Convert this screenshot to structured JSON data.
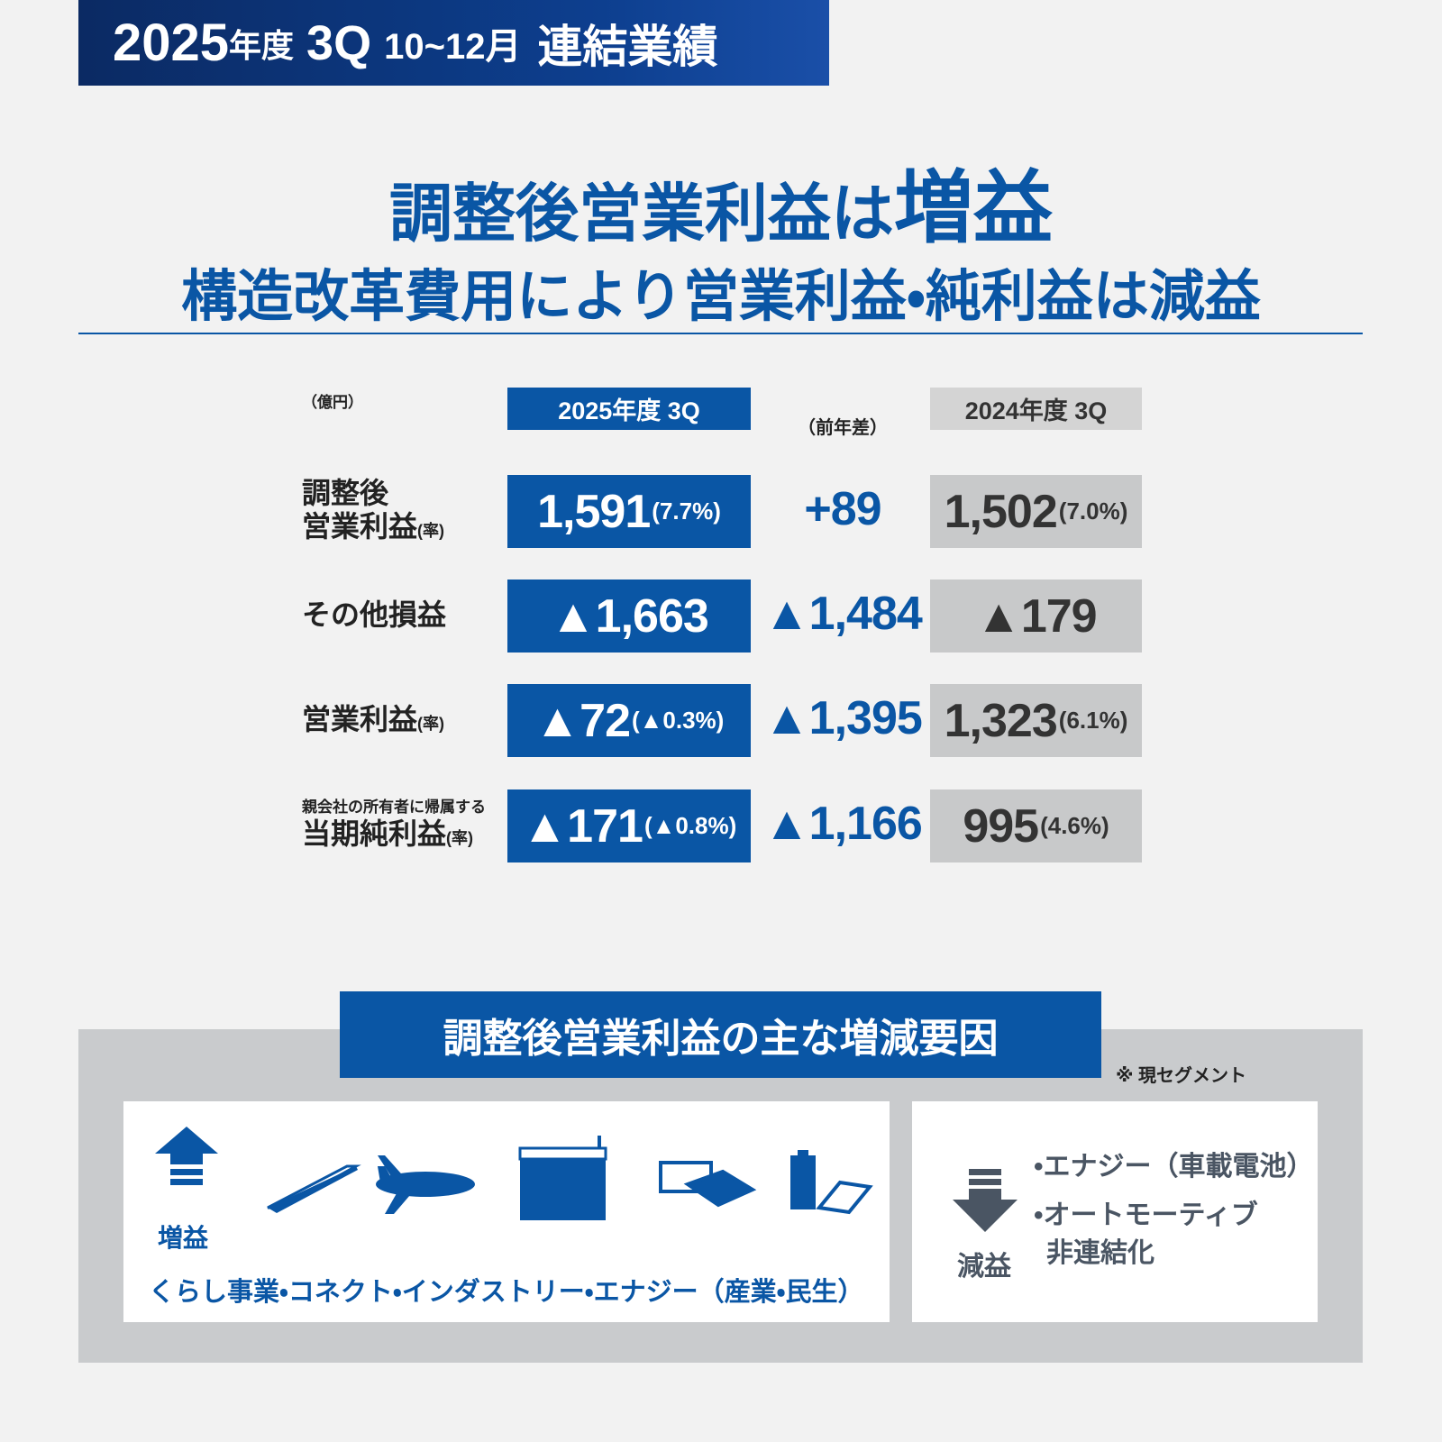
{
  "header": {
    "year": "2025",
    "year_suffix": "年度",
    "quarter": "3Q",
    "period": "10~12月",
    "label": "連結業績"
  },
  "headline": {
    "line1_a": "調整後営業利益は",
    "line1_b": "増益",
    "line2": "構造改革費用により営業利益・純利益は減益"
  },
  "table": {
    "unit": "（億円）",
    "columns": [
      "2025年度 3Q",
      "（前年差）",
      "2024年度 3Q"
    ],
    "rows": [
      {
        "label": [
          "調整後",
          "営業利益"
        ],
        "rate_mark": "(率)",
        "current": "1,591",
        "current_rate": "(7.7%)",
        "diff": "+89",
        "previous": "1,502",
        "previous_rate": "(7.0%)"
      },
      {
        "label": [
          "その他損益"
        ],
        "current": "▲1,663",
        "diff": "▲1,484",
        "previous": "▲179"
      },
      {
        "label": [
          "営業利益"
        ],
        "rate_mark": "(率)",
        "current": "▲72",
        "current_rate": "(▲0.3%)",
        "diff": "▲1,395",
        "previous": "1,323",
        "previous_rate": "(6.1%)"
      },
      {
        "note": "親会社の所有者に帰属する",
        "label": [
          "当期純利益"
        ],
        "rate_mark": "(率)",
        "current": "▲171",
        "current_rate": "(▲0.8%)",
        "diff": "▲1,166",
        "previous": "995",
        "previous_rate": "(4.6%)"
      }
    ]
  },
  "factors": {
    "title": "調整後営業利益の主な増減要因",
    "note": "※ 現セグメント",
    "increase": {
      "label": "増益",
      "text": "くらし事業・コネクト・インダストリー・エナジー（産業・民生）"
    },
    "decrease": {
      "label": "減益",
      "items": [
        [
          "•エナジー（車載電池）"
        ],
        [
          "•オートモーティブ",
          "非連結化"
        ]
      ]
    }
  }
}
